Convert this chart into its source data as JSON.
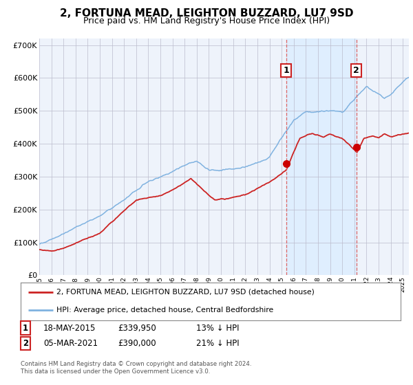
{
  "title": "2, FORTUNA MEAD, LEIGHTON BUZZARD, LU7 9SD",
  "subtitle": "Price paid vs. HM Land Registry's House Price Index (HPI)",
  "ylim": [
    0,
    720000
  ],
  "yticks": [
    0,
    100000,
    200000,
    300000,
    400000,
    500000,
    600000,
    700000
  ],
  "ytick_labels": [
    "£0",
    "£100K",
    "£200K",
    "£300K",
    "£400K",
    "£500K",
    "£600K",
    "£700K"
  ],
  "hpi_color": "#7fb2e0",
  "price_color": "#cc2222",
  "marker_color": "#cc0000",
  "vline_color": "#dd6666",
  "shading_color": "#ddeeff",
  "background_color": "#eef3fb",
  "grid_color": "#bbbbcc",
  "sale1_year": 2015.38,
  "sale1_price": 339950,
  "sale2_year": 2021.17,
  "sale2_price": 390000,
  "legend_label_price": "2, FORTUNA MEAD, LEIGHTON BUZZARD, LU7 9SD (detached house)",
  "legend_label_hpi": "HPI: Average price, detached house, Central Bedfordshire",
  "footer": "Contains HM Land Registry data © Crown copyright and database right 2024.\nThis data is licensed under the Open Government Licence v3.0."
}
